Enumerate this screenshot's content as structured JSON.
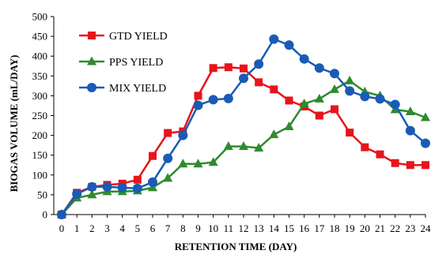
{
  "chart_data": {
    "type": "line",
    "xlabel": "RETENTION TIME (DAY)",
    "ylabel": "BIOGAS VOLUME (mL/DAY)",
    "x": [
      0,
      1,
      2,
      3,
      4,
      5,
      6,
      7,
      8,
      9,
      10,
      11,
      12,
      13,
      14,
      15,
      16,
      17,
      18,
      19,
      20,
      21,
      22,
      23,
      24
    ],
    "ylim": [
      0,
      500
    ],
    "yticks": [
      0,
      50,
      100,
      150,
      200,
      250,
      300,
      350,
      400,
      450,
      500
    ],
    "grid": false,
    "legend_position": "top-left",
    "series": [
      {
        "name": "GTD YIELD",
        "color": "#e8141c",
        "marker": "square",
        "values": [
          0,
          55,
          70,
          75,
          78,
          88,
          148,
          206,
          210,
          300,
          370,
          372,
          369,
          334,
          316,
          288,
          273,
          250,
          266,
          207,
          170,
          152,
          130,
          125,
          125
        ]
      },
      {
        "name": "PPS YIELD",
        "color": "#2e8b2e",
        "marker": "triangle",
        "values": [
          0,
          42,
          50,
          58,
          58,
          60,
          68,
          92,
          128,
          128,
          132,
          172,
          172,
          168,
          202,
          222,
          280,
          292,
          316,
          338,
          310,
          300,
          265,
          260,
          245
        ]
      },
      {
        "name": "MIX YIELD",
        "color": "#1a5bb5",
        "marker": "circle",
        "values": [
          0,
          52,
          70,
          70,
          68,
          66,
          82,
          142,
          200,
          276,
          290,
          293,
          344,
          380,
          443,
          428,
          393,
          370,
          356,
          312,
          298,
          292,
          278,
          212,
          180
        ]
      }
    ]
  }
}
